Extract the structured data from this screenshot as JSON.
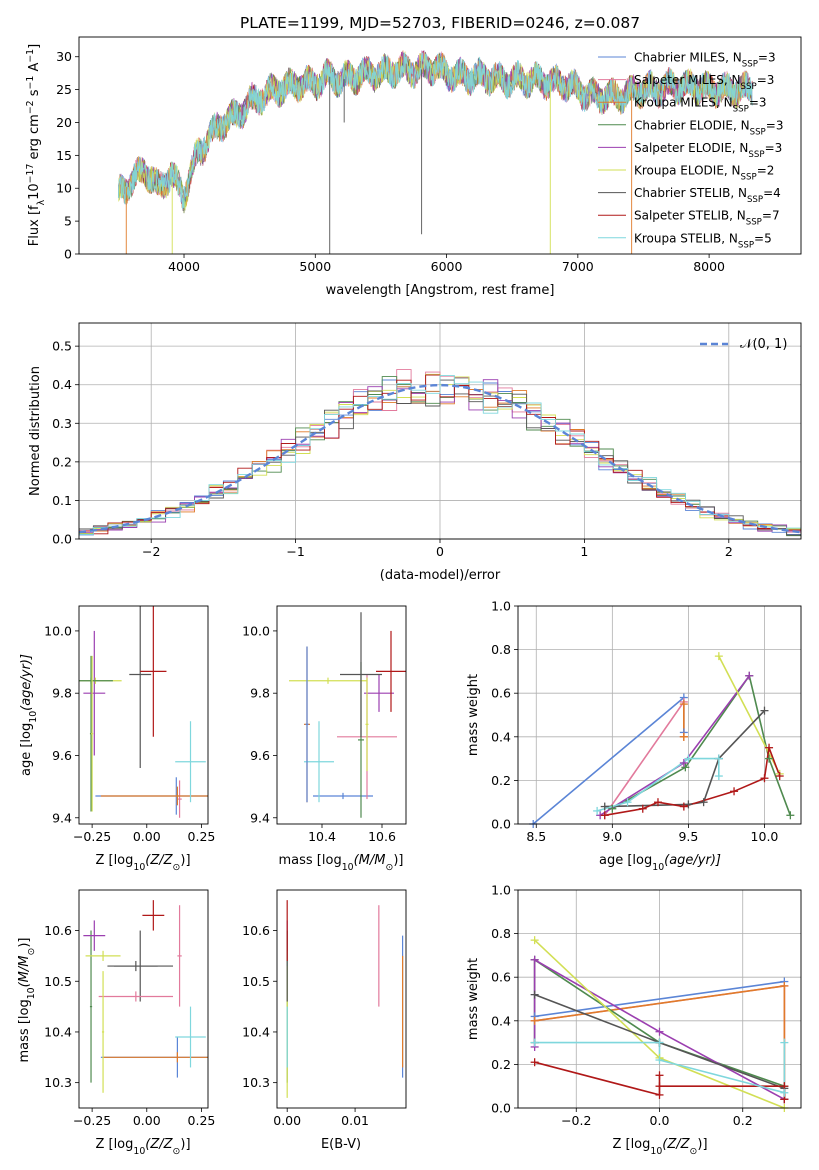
{
  "colors": {
    "Chabrier MILES": "#5b85d6",
    "Salpeter MILES": "#e27a9c",
    "Kroupa MILES": "#e07b2a",
    "Chabrier ELODIE": "#4f8a4f",
    "Salpeter ELODIE": "#9b3fb0",
    "Kroupa ELODIE": "#d2df55",
    "Chabrier STELIB": "#555555",
    "Salpeter STELIB": "#b01818",
    "Kroupa STELIB": "#7fd7dd",
    "normal": "#5b85d6",
    "grid": "#b0b0b0"
  },
  "chart_data": [
    {
      "type": "line",
      "title": "PLATE=1199, MJD=52703, FIBERID=0246, z=0.087",
      "xlabel": "wavelength [Angstrom, rest frame]",
      "ylabel": "Flux [f",
      "ylabel_sub": "λ",
      "ylabel_rest": "10",
      "ylabel_exp": "−17",
      "ylabel_tail": " erg cm",
      "ylabel_exp2": "−2",
      "ylabel_tail2": " s",
      "ylabel_exp3": "−1",
      "ylabel_tail3": " A",
      "ylabel_exp4": "−1",
      "ylabel_end": "]",
      "xlim": [
        3200,
        8700
      ],
      "ylim": [
        0,
        33
      ],
      "xticks": [
        4000,
        5000,
        6000,
        7000,
        8000
      ],
      "yticks": [
        0,
        5,
        10,
        15,
        20,
        25,
        30
      ],
      "continuum": {
        "x": [
          3500,
          3600,
          3700,
          3800,
          3900,
          4000,
          4100,
          4200,
          4300,
          4400,
          4500,
          4600,
          4700,
          4800,
          4900,
          5000,
          5100,
          5200,
          5300,
          5400,
          5500,
          5600,
          5700,
          5800,
          5900,
          6000,
          6100,
          6200,
          6300,
          6400,
          6500,
          6600,
          6700,
          6800,
          6900,
          7000,
          7100,
          7200,
          7300,
          7400,
          7500,
          7600,
          7700,
          7800,
          7900,
          8000,
          8100,
          8200,
          8300
        ],
        "y": [
          9,
          11,
          13,
          10,
          12,
          9,
          15,
          18,
          20,
          21,
          23,
          24,
          25,
          25.5,
          26,
          26,
          27,
          26.5,
          27,
          27.5,
          27.5,
          28,
          28,
          28,
          28.5,
          27.5,
          27,
          27,
          27,
          26.5,
          26.5,
          26.5,
          26.5,
          26,
          26,
          25,
          24,
          24,
          24,
          24.5,
          25,
          25,
          25.5,
          25.5,
          25.5,
          25,
          25,
          25,
          25
        ]
      },
      "series": [
        {
          "name": "Chabrier MILES",
          "nssp": "3"
        },
        {
          "name": "Salpeter MILES",
          "nssp": "3"
        },
        {
          "name": "Kroupa MILES",
          "nssp": "3"
        },
        {
          "name": "Chabrier ELODIE",
          "nssp": "3"
        },
        {
          "name": "Salpeter ELODIE",
          "nssp": "3"
        },
        {
          "name": "Kroupa ELODIE",
          "nssp": "2"
        },
        {
          "name": "Chabrier STELIB",
          "nssp": "4"
        },
        {
          "name": "Salpeter STELIB",
          "nssp": "7"
        },
        {
          "name": "Kroupa STELIB",
          "nssp": "5"
        }
      ],
      "legend_sub": "SSP",
      "legend_placement": "top-right",
      "grid": false
    },
    {
      "type": "line",
      "xlabel": "(data-model)/error",
      "ylabel": "Normed distribution",
      "xlim": [
        -2.5,
        2.5
      ],
      "ylim": [
        0,
        0.56
      ],
      "xticks": [
        -2,
        -1,
        0,
        1,
        2
      ],
      "xticklabels": [
        "−2",
        "−1",
        "0",
        "1",
        "2"
      ],
      "yticks": [
        0.0,
        0.1,
        0.2,
        0.3,
        0.4,
        0.5
      ],
      "yticklabels": [
        "0.0",
        "0.1",
        "0.2",
        "0.3",
        "0.4",
        "0.5"
      ],
      "bin_width": 0.1,
      "normal_label": "𝒩(0, 1)",
      "legend_placement": "top-right",
      "grid": true
    },
    {
      "type": "scatter",
      "xlabel": "Z [log",
      "xlabel_sub": "10",
      "xlabel_mid": "(Z/Z",
      "xlabel_sub2": "⊙",
      "xlabel_end": ")]",
      "ylabel": "age  [log",
      "ylabel_sub": "10",
      "ylabel_end": "(age/yr)]",
      "xlim": [
        -0.31,
        0.28
      ],
      "ylim": [
        9.38,
        10.08
      ],
      "xticks": [
        -0.25,
        0.0,
        0.25
      ],
      "xticklabels": [
        "−0.25",
        "0.00",
        "0.25"
      ],
      "yticks": [
        9.4,
        9.6,
        9.8,
        10.0
      ],
      "yticklabels": [
        "9.4",
        "9.6",
        "9.8",
        "10.0"
      ],
      "points": [
        {
          "name": "Chabrier MILES",
          "x": 0.135,
          "y": 9.47,
          "xerr": 0.37,
          "yerr": 0.06
        },
        {
          "name": "Salpeter MILES",
          "x": 0.15,
          "y": 9.46,
          "xerr": 0.01,
          "yerr": 0.06
        },
        {
          "name": "Kroupa MILES",
          "x": 0.14,
          "y": 9.47,
          "xerr": 0.35,
          "yerr": 0.03
        },
        {
          "name": "Chabrier ELODIE",
          "x": -0.255,
          "y": 9.67,
          "xerr": 0.005,
          "yerr": 0.25
        },
        {
          "name": "Salpeter ELODIE",
          "x": -0.24,
          "y": 9.8,
          "xerr": 0.05,
          "yerr": 0.2
        },
        {
          "name": "Kroupa ELODIE",
          "x": -0.235,
          "y": 9.84,
          "xerr": 0.12,
          "yerr": 0.01
        },
        {
          "name": "Chabrier STELIB",
          "x": -0.03,
          "y": 9.86,
          "xerr": 0.05,
          "yerr": 0.3
        },
        {
          "name": "Salpeter STELIB",
          "x": 0.03,
          "y": 9.87,
          "xerr": 0.06,
          "yerr": 0.21
        },
        {
          "name": "Kroupa STELIB",
          "x": 0.2,
          "y": 9.58,
          "xerr": 0.07,
          "yerr": 0.13
        },
        {
          "name": "Chabrier ELODIE",
          "x": -0.255,
          "y": 9.84,
          "xerr": 0.1,
          "yerr": 0.01
        },
        {
          "name": "Kroupa ELODIE",
          "x": -0.25,
          "y": 9.67,
          "xerr": 0.005,
          "yerr": 0.25
        }
      ]
    },
    {
      "type": "scatter",
      "xlabel": "mass [log",
      "xlabel_sub": "10",
      "xlabel_mid": "(M/M",
      "xlabel_sub2": "⊙",
      "xlabel_end": ")]",
      "xlim": [
        10.25,
        10.68
      ],
      "ylim": [
        9.38,
        10.08
      ],
      "xticks": [
        10.4,
        10.6
      ],
      "xticklabels": [
        "10.4",
        "10.6"
      ],
      "yticks": [
        9.4,
        9.6,
        9.8,
        10.0
      ],
      "yticklabels": [
        "9.4",
        "9.6",
        "9.8",
        "10.0"
      ],
      "points": [
        {
          "name": "Chabrier MILES",
          "x": 10.47,
          "y": 9.47,
          "xerr": 0.1,
          "yerr": 0.01
        },
        {
          "name": "Salpeter MILES",
          "x": 10.55,
          "y": 9.66,
          "xerr": 0.1,
          "yerr": 0.2
        },
        {
          "name": "Kroupa MILES",
          "x": 10.35,
          "y": 9.7,
          "xerr": 0.01,
          "yerr": 0.25
        },
        {
          "name": "Chabrier ELODIE",
          "x": 10.53,
          "y": 9.65,
          "xerr": 0.01,
          "yerr": 0.25
        },
        {
          "name": "Salpeter ELODIE",
          "x": 10.59,
          "y": 9.8,
          "xerr": 0.05,
          "yerr": 0.06
        },
        {
          "name": "Kroupa ELODIE",
          "x": 10.42,
          "y": 9.84,
          "xerr": 0.13,
          "yerr": 0.01
        },
        {
          "name": "Chabrier STELIB",
          "x": 10.53,
          "y": 9.86,
          "xerr": 0.07,
          "yerr": 0.2
        },
        {
          "name": "Salpeter STELIB",
          "x": 10.63,
          "y": 9.87,
          "xerr": 0.05,
          "yerr": 0.13
        },
        {
          "name": "Kroupa STELIB",
          "x": 10.39,
          "y": 9.58,
          "xerr": 0.05,
          "yerr": 0.13
        },
        {
          "name": "Kroupa ELODIE",
          "x": 10.55,
          "y": 9.7,
          "xerr": 0.005,
          "yerr": 0.15
        },
        {
          "name": "Chabrier MILES",
          "x": 10.35,
          "y": 9.7,
          "xerr": 0.005,
          "yerr": 0.25
        }
      ]
    },
    {
      "type": "line",
      "xlabel": "age  [log",
      "xlabel_sub": "10",
      "xlabel_end": "(age/yr)]",
      "ylabel": "mass weight",
      "xlim": [
        8.38,
        10.24
      ],
      "ylim": [
        0,
        1
      ],
      "xticks": [
        8.5,
        9.0,
        9.5,
        10.0
      ],
      "xticklabels": [
        "8.5",
        "9.0",
        "9.5",
        "10.0"
      ],
      "yticks": [
        0,
        0.2,
        0.4,
        0.6,
        0.8,
        1.0
      ],
      "yticklabels": [
        "0.0",
        "0.2",
        "0.4",
        "0.6",
        "0.8",
        "1.0"
      ],
      "grid": true,
      "series": [
        {
          "name": "Chabrier MILES",
          "x": [
            8.48,
            9.47,
            9.47
          ],
          "y": [
            0.0,
            0.58,
            0.42
          ]
        },
        {
          "name": "Salpeter MILES",
          "x": [
            8.95,
            9.47,
            9.47
          ],
          "y": [
            0.04,
            0.56,
            0.4
          ]
        },
        {
          "name": "Kroupa MILES",
          "x": [
            9.47,
            9.47,
            9.47
          ],
          "y": [
            0.55,
            0.4,
            0.4
          ]
        },
        {
          "name": "Chabrier ELODIE",
          "x": [
            9.0,
            9.48,
            9.9,
            10.03,
            10.17
          ],
          "y": [
            0.07,
            0.26,
            0.68,
            0.3,
            0.04
          ]
        },
        {
          "name": "Salpeter ELODIE",
          "x": [
            8.92,
            9.47,
            9.9
          ],
          "y": [
            0.04,
            0.28,
            0.68
          ]
        },
        {
          "name": "Kroupa ELODIE",
          "x": [
            9.7,
            10.1
          ],
          "y": [
            0.77,
            0.23
          ]
        },
        {
          "name": "Chabrier STELIB",
          "x": [
            8.95,
            9.5,
            9.6,
            9.7,
            10.0
          ],
          "y": [
            0.08,
            0.09,
            0.1,
            0.3,
            0.52
          ]
        },
        {
          "name": "Salpeter STELIB",
          "x": [
            8.95,
            9.2,
            9.3,
            9.47,
            9.8,
            10.0,
            10.03,
            10.1
          ],
          "y": [
            0.04,
            0.07,
            0.1,
            0.08,
            0.15,
            0.21,
            0.35,
            0.22
          ]
        },
        {
          "name": "Kroupa STELIB",
          "x": [
            8.9,
            9.1,
            9.5,
            9.7,
            9.7
          ],
          "y": [
            0.06,
            0.1,
            0.3,
            0.3,
            0.22
          ]
        }
      ]
    },
    {
      "type": "scatter",
      "xlabel": "Z [log",
      "xlabel_sub": "10",
      "xlabel_mid": "(Z/Z",
      "xlabel_sub2": "⊙",
      "xlabel_end": ")]",
      "ylabel": "mass [log",
      "ylabel_sub": "10",
      "ylabel_mid": "(M/M",
      "ylabel_sub2": "⊙",
      "ylabel_end": ")]",
      "xlim": [
        -0.31,
        0.28
      ],
      "ylim": [
        10.25,
        10.68
      ],
      "xticks": [
        -0.25,
        0.0,
        0.25
      ],
      "xticklabels": [
        "−0.25",
        "0.00",
        "0.25"
      ],
      "yticks": [
        10.3,
        10.4,
        10.5,
        10.6
      ],
      "yticklabels": [
        "10.3",
        "10.4",
        "10.5",
        "10.6"
      ],
      "points": [
        {
          "name": "Chabrier MILES",
          "x": 0.14,
          "y": 10.35,
          "xerr": 0.35,
          "yerr": 0.04
        },
        {
          "name": "Salpeter MILES",
          "x": 0.15,
          "y": 10.55,
          "xerr": 0.01,
          "yerr": 0.1
        },
        {
          "name": "Kroupa MILES",
          "x": 0.14,
          "y": 10.35,
          "xerr": 0.34,
          "yerr": 0.01
        },
        {
          "name": "Chabrier ELODIE",
          "x": -0.255,
          "y": 10.45,
          "xerr": 0.005,
          "yerr": 0.15
        },
        {
          "name": "Salpeter ELODIE",
          "x": -0.24,
          "y": 10.59,
          "xerr": 0.05,
          "yerr": 0.03
        },
        {
          "name": "Kroupa ELODIE",
          "x": -0.2,
          "y": 10.55,
          "xerr": 0.08,
          "yerr": 0.01
        },
        {
          "name": "Chabrier STELIB",
          "x": -0.03,
          "y": 10.53,
          "xerr": 0.15,
          "yerr": 0.07
        },
        {
          "name": "Salpeter STELIB",
          "x": 0.03,
          "y": 10.63,
          "xerr": 0.05,
          "yerr": 0.03
        },
        {
          "name": "Kroupa STELIB",
          "x": 0.2,
          "y": 10.39,
          "xerr": 0.07,
          "yerr": 0.06
        },
        {
          "name": "Salpeter MILES",
          "x": -0.05,
          "y": 10.47,
          "xerr": 0.17,
          "yerr": 0.01
        },
        {
          "name": "Chabrier STELIB",
          "x": -0.05,
          "y": 10.53,
          "xerr": 0.1,
          "yerr": 0.01
        },
        {
          "name": "Kroupa ELODIE",
          "x": -0.2,
          "y": 10.4,
          "xerr": 0.005,
          "yerr": 0.12
        }
      ]
    },
    {
      "type": "scatter",
      "xlabel": "E(B-V)",
      "xlim": [
        -0.0015,
        0.0175
      ],
      "ylim": [
        10.25,
        10.68
      ],
      "xticks": [
        0.0,
        0.01
      ],
      "xticklabels": [
        "0.00",
        "0.01"
      ],
      "yticks": [
        10.3,
        10.4,
        10.5,
        10.6
      ],
      "yticklabels": [
        "10.3",
        "10.4",
        "10.5",
        "10.6"
      ],
      "points": [
        {
          "name": "Chabrier MILES",
          "x": 0.017,
          "y": 10.45,
          "xerr": 0.0,
          "yerr": 0.14
        },
        {
          "name": "Salpeter MILES",
          "x": 0.0135,
          "y": 10.55,
          "xerr": 0.0,
          "yerr": 0.1
        },
        {
          "name": "Kroupa MILES",
          "x": 0.017,
          "y": 10.44,
          "xerr": 0.0,
          "yerr": 0.11
        },
        {
          "name": "Chabrier ELODIE",
          "x": 0.0,
          "y": 10.45,
          "xerr": 0.0,
          "yerr": 0.15
        },
        {
          "name": "Salpeter ELODIE",
          "x": 0.0,
          "y": 10.59,
          "xerr": 0.0,
          "yerr": 0.03
        },
        {
          "name": "Kroupa ELODIE",
          "x": 0.0,
          "y": 10.4,
          "xerr": 0.0,
          "yerr": 0.13
        },
        {
          "name": "Chabrier STELIB",
          "x": 0.0,
          "y": 10.53,
          "xerr": 0.0,
          "yerr": 0.07
        },
        {
          "name": "Salpeter STELIB",
          "x": 0.0,
          "y": 10.6,
          "xerr": 0.0,
          "yerr": 0.06
        },
        {
          "name": "Kroupa STELIB",
          "x": 0.0,
          "y": 10.39,
          "xerr": 0.0,
          "yerr": 0.06
        }
      ]
    },
    {
      "type": "line",
      "xlabel": "Z [log",
      "xlabel_sub": "10",
      "xlabel_mid": "(Z/Z",
      "xlabel_sub2": "⊙",
      "xlabel_end": ")]",
      "ylabel": "mass weight",
      "xlim": [
        -0.34,
        0.34
      ],
      "ylim": [
        0,
        1
      ],
      "xticks": [
        -0.2,
        0.0,
        0.2
      ],
      "xticklabels": [
        "−0.2",
        "0.0",
        "0.2"
      ],
      "yticks": [
        0,
        0.2,
        0.4,
        0.6,
        0.8,
        1.0
      ],
      "yticklabels": [
        "0.0",
        "0.2",
        "0.4",
        "0.6",
        "0.8",
        "1.0"
      ],
      "grid": true,
      "series": [
        {
          "name": "Chabrier MILES",
          "x": [
            -0.3,
            0.3
          ],
          "y": [
            0.42,
            0.58
          ]
        },
        {
          "name": "Salpeter MILES",
          "x": [
            -0.3,
            0.3,
            0.3
          ],
          "y": [
            0.4,
            0.56,
            0.04
          ]
        },
        {
          "name": "Kroupa MILES",
          "x": [
            -0.3,
            0.3,
            0.3
          ],
          "y": [
            0.4,
            0.56,
            0.04
          ]
        },
        {
          "name": "Chabrier ELODIE",
          "x": [
            -0.3,
            -0.3,
            0.0,
            0.3,
            0.3
          ],
          "y": [
            0.3,
            0.68,
            0.3,
            0.1,
            0.04
          ]
        },
        {
          "name": "Salpeter ELODIE",
          "x": [
            -0.3,
            -0.3,
            0.0,
            0.3
          ],
          "y": [
            0.28,
            0.68,
            0.35,
            0.04
          ]
        },
        {
          "name": "Kroupa ELODIE",
          "x": [
            -0.3,
            0.0,
            0.3
          ],
          "y": [
            0.77,
            0.23,
            0.0
          ]
        },
        {
          "name": "Chabrier STELIB",
          "x": [
            -0.3,
            0.0,
            0.3
          ],
          "y": [
            0.52,
            0.3,
            0.09
          ]
        },
        {
          "name": "Salpeter STELIB",
          "x": [
            -0.3,
            0.0,
            0.0,
            0.0,
            0.3,
            0.3
          ],
          "y": [
            0.21,
            0.06,
            0.15,
            0.1,
            0.1,
            0.04
          ]
        },
        {
          "name": "Kroupa STELIB",
          "x": [
            -0.3,
            0.0,
            0.0,
            0.3,
            0.3
          ],
          "y": [
            0.3,
            0.3,
            0.22,
            0.07,
            0.3
          ]
        }
      ]
    }
  ]
}
